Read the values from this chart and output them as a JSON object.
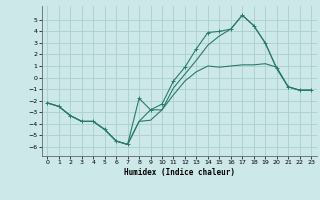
{
  "xlabel": "Humidex (Indice chaleur)",
  "bg_color": "#cce8e8",
  "grid_color": "#aad0d0",
  "line_color": "#2a7a6a",
  "xlim": [
    -0.5,
    23.5
  ],
  "ylim": [
    -6.8,
    6.2
  ],
  "xticks": [
    0,
    1,
    2,
    3,
    4,
    5,
    6,
    7,
    8,
    9,
    10,
    11,
    12,
    13,
    14,
    15,
    16,
    17,
    18,
    19,
    20,
    21,
    22,
    23
  ],
  "yticks": [
    -6,
    -5,
    -4,
    -3,
    -2,
    -1,
    0,
    1,
    2,
    3,
    4,
    5
  ],
  "line1_x": [
    0,
    1,
    2,
    3,
    4,
    5,
    6,
    7,
    8,
    9,
    10,
    11,
    12,
    13,
    14,
    15,
    16,
    17,
    18,
    19,
    20,
    21,
    22,
    23
  ],
  "line1_y": [
    -2.2,
    -2.5,
    -3.3,
    -3.8,
    -3.8,
    -4.5,
    -5.5,
    -5.8,
    -3.8,
    -3.7,
    -2.8,
    -1.5,
    -0.3,
    0.5,
    1.0,
    0.9,
    1.0,
    1.1,
    1.1,
    1.2,
    0.9,
    -0.8,
    -1.1,
    -1.1
  ],
  "line2_x": [
    0,
    1,
    2,
    3,
    4,
    5,
    6,
    7,
    8,
    9,
    10,
    11,
    12,
    13,
    14,
    15,
    16,
    17,
    18,
    19,
    20,
    21,
    22,
    23
  ],
  "line2_y": [
    -2.2,
    -2.5,
    -3.3,
    -3.8,
    -3.8,
    -4.5,
    -5.5,
    -5.8,
    -1.8,
    -2.8,
    -2.3,
    -0.3,
    0.9,
    2.5,
    3.9,
    4.0,
    4.2,
    5.4,
    4.5,
    3.0,
    0.8,
    -0.8,
    -1.1,
    -1.1
  ],
  "line3_x": [
    0,
    1,
    2,
    3,
    4,
    5,
    6,
    7,
    8,
    9,
    10,
    11,
    12,
    13,
    14,
    15,
    16,
    17,
    18,
    19,
    20,
    21,
    22,
    23
  ],
  "line3_y": [
    -2.2,
    -2.5,
    -3.3,
    -3.8,
    -3.8,
    -4.5,
    -5.5,
    -5.8,
    -3.8,
    -2.8,
    -2.8,
    -0.9,
    0.3,
    1.5,
    2.8,
    3.6,
    4.2,
    5.4,
    4.5,
    3.0,
    0.8,
    -0.8,
    -1.1,
    -1.1
  ]
}
